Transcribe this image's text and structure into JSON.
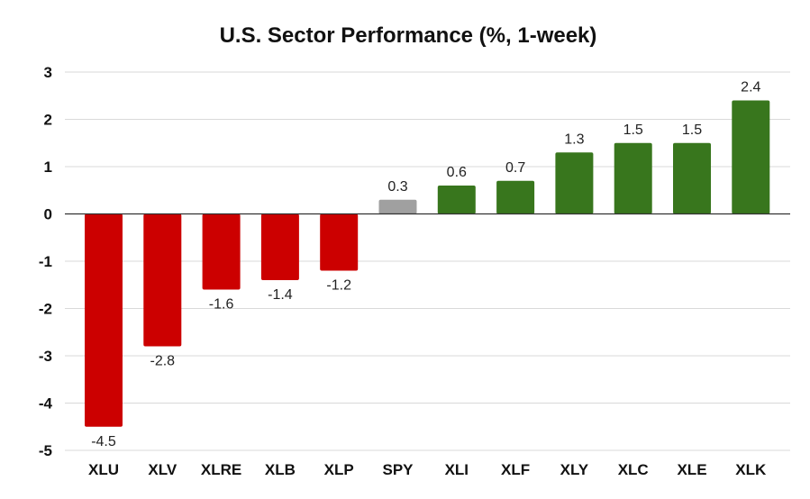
{
  "chart_data": {
    "type": "bar",
    "title": "U.S. Sector Performance (%, 1-week)",
    "xlabel": "",
    "ylabel": "",
    "ylim": [
      -5,
      3
    ],
    "yticks": [
      3,
      2,
      1,
      0,
      -1,
      -2,
      -3,
      -4,
      -5
    ],
    "grid": true,
    "categories": [
      "XLU",
      "XLV",
      "XLRE",
      "XLB",
      "XLP",
      "SPY",
      "XLI",
      "XLF",
      "XLY",
      "XLC",
      "XLE",
      "XLK"
    ],
    "values": [
      -4.5,
      -2.8,
      -1.6,
      -1.4,
      -1.2,
      0.3,
      0.6,
      0.7,
      1.3,
      1.5,
      1.5,
      2.4
    ],
    "value_labels": [
      "-4.5",
      "-2.8",
      "-1.6",
      "-1.4",
      "-1.2",
      "0.3",
      "0.6",
      "0.7",
      "1.3",
      "1.5",
      "1.5",
      "2.4"
    ],
    "colors": {
      "negative": "#cc0000",
      "benchmark": "#a0a0a0",
      "positive": "#38761d"
    },
    "benchmark_category": "SPY"
  }
}
